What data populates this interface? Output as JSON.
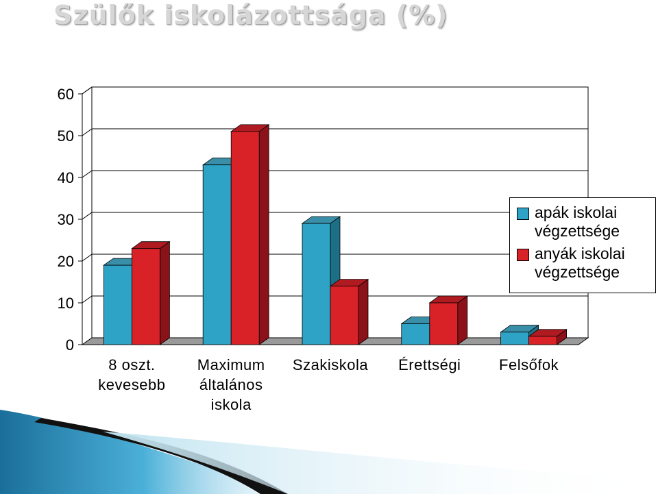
{
  "title": "Szülők iskolázottsága (%)",
  "colors": {
    "father_front": "#2ea3c6",
    "father_top": "#3a8fa8",
    "father_side": "#1d6f86",
    "mother_front": "#d92128",
    "mother_top": "#b01b22",
    "mother_side": "#8a1218",
    "wall": "#ffffff",
    "floor": "#9a9a9a",
    "grid": "#000000"
  },
  "chart_data": {
    "type": "bar",
    "categories": [
      [
        "8 oszt.",
        "kevesebb"
      ],
      [
        "Maximum",
        "általános",
        "iskola"
      ],
      [
        "Szakiskola"
      ],
      [
        "Érettségi"
      ],
      [
        "Felsőfok"
      ]
    ],
    "series": [
      {
        "name": "apák iskolai végzettsége",
        "values": [
          19,
          43,
          29,
          5,
          3
        ]
      },
      {
        "name": "anyák iskolai végzettsége",
        "values": [
          23,
          51,
          14,
          10,
          2
        ]
      }
    ],
    "yticks": [
      "0",
      "10",
      "20",
      "30",
      "40",
      "50",
      "60"
    ],
    "ylim": [
      0,
      60
    ],
    "grid": true,
    "legend_position": "right"
  },
  "legend": {
    "items": [
      {
        "line1": "apák iskolai",
        "line2": "végzettsége"
      },
      {
        "line1": "anyák iskolai",
        "line2": "végzettsége"
      }
    ]
  }
}
